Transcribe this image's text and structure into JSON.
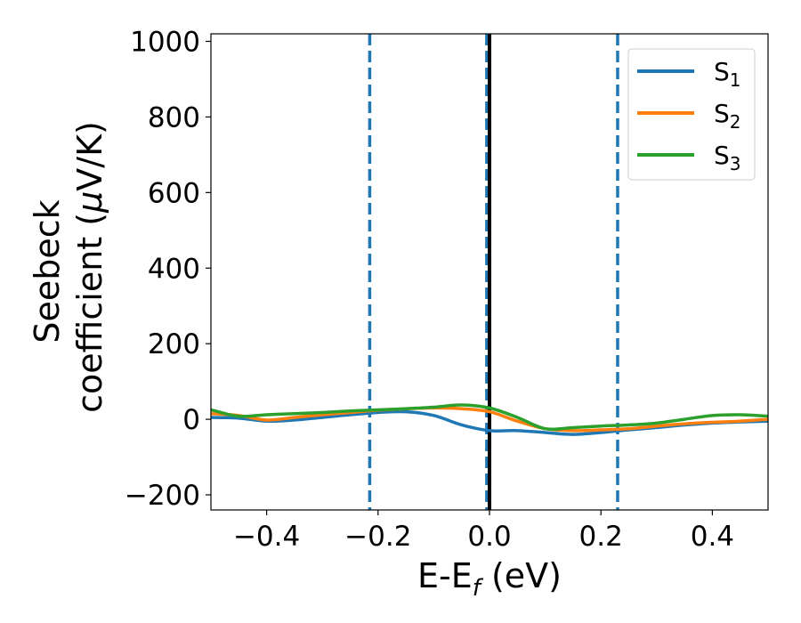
{
  "chart_data": {
    "type": "line",
    "xlabel": "E-E",
    "xlabel_sub": "f",
    "xlabel_unit": " (eV)",
    "ylabel_line1": "Seebeck",
    "ylabel_line2": "coefficient  (",
    "ylabel_mu": "μ",
    "ylabel_line2_end": "V/K)",
    "xlim": [
      -0.5,
      0.5
    ],
    "ylim": [
      -240,
      1020
    ],
    "xticks": [
      -0.4,
      -0.2,
      0.0,
      0.2,
      0.4
    ],
    "xtick_labels": [
      "−0.4",
      "−0.2",
      "0.0",
      "0.2",
      "0.4"
    ],
    "yticks": [
      -200,
      0,
      200,
      400,
      600,
      800,
      1000
    ],
    "ytick_labels": [
      "−200",
      "0",
      "200",
      "400",
      "600",
      "800",
      "1000"
    ],
    "grid": false,
    "legend_position": "top-right",
    "vlines": [
      {
        "x": -0.215,
        "style": "dashed",
        "color": "#1f77b4"
      },
      {
        "x": -0.005,
        "style": "dashed",
        "color": "#1f77b4"
      },
      {
        "x": 0.23,
        "style": "dashed",
        "color": "#1f77b4"
      },
      {
        "x": 0.0,
        "style": "solid",
        "color": "#000000"
      }
    ],
    "series": [
      {
        "name": "S",
        "sub": "1",
        "color": "#1f77b4",
        "x": [
          -0.5,
          -0.45,
          -0.4,
          -0.35,
          -0.3,
          -0.25,
          -0.2,
          -0.15,
          -0.1,
          -0.05,
          0.0,
          0.05,
          0.1,
          0.15,
          0.2,
          0.25,
          0.3,
          0.35,
          0.4,
          0.45,
          0.5
        ],
        "y": [
          5,
          3,
          -5,
          -2,
          5,
          12,
          18,
          20,
          10,
          -15,
          -30,
          -30,
          -35,
          -40,
          -35,
          -28,
          -22,
          -15,
          -10,
          -7,
          -5
        ]
      },
      {
        "name": "S",
        "sub": "2",
        "color": "#ff7f0e",
        "x": [
          -0.5,
          -0.45,
          -0.4,
          -0.35,
          -0.3,
          -0.25,
          -0.2,
          -0.15,
          -0.1,
          -0.05,
          0.0,
          0.05,
          0.1,
          0.15,
          0.2,
          0.25,
          0.3,
          0.35,
          0.4,
          0.45,
          0.5
        ],
        "y": [
          15,
          10,
          -2,
          5,
          12,
          18,
          24,
          28,
          30,
          28,
          20,
          -5,
          -25,
          -30,
          -28,
          -25,
          -18,
          -12,
          -8,
          -5,
          0
        ]
      },
      {
        "name": "S",
        "sub": "3",
        "color": "#2ca02c",
        "x": [
          -0.5,
          -0.45,
          -0.4,
          -0.35,
          -0.3,
          -0.25,
          -0.2,
          -0.15,
          -0.1,
          -0.05,
          0.0,
          0.05,
          0.1,
          0.15,
          0.2,
          0.25,
          0.3,
          0.35,
          0.4,
          0.45,
          0.5
        ],
        "y": [
          25,
          8,
          12,
          15,
          18,
          22,
          25,
          28,
          32,
          38,
          30,
          5,
          -25,
          -22,
          -18,
          -15,
          -10,
          0,
          10,
          12,
          8
        ]
      }
    ]
  }
}
